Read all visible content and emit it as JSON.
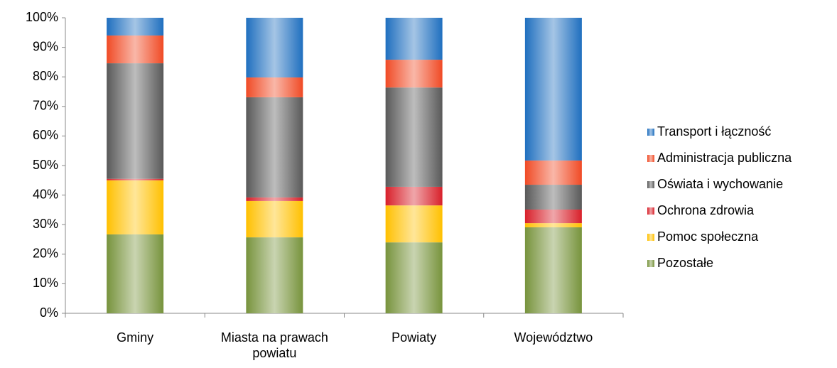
{
  "chart_data": {
    "type": "stacked_bar_100",
    "categories": [
      "Gminy",
      "Miasta na prawach powiatu",
      "Powiaty",
      "Województwo"
    ],
    "series": [
      {
        "name": "Pozostałe",
        "color": "#77933c",
        "values": [
          26.7,
          25.7,
          24.0,
          29.1
        ]
      },
      {
        "name": "Pomoc społeczna",
        "color": "#ffc000",
        "values": [
          18.3,
          12.3,
          12.5,
          1.4
        ]
      },
      {
        "name": "Ochrona zdrowia",
        "color": "#d8202a",
        "values": [
          0.5,
          1.2,
          6.3,
          4.6
        ]
      },
      {
        "name": "Oświata i wychowanie",
        "color": "#595959",
        "values": [
          39.1,
          33.9,
          33.6,
          8.4
        ]
      },
      {
        "name": "Administracja publiczna",
        "color": "#f04a25",
        "values": [
          9.4,
          6.7,
          9.4,
          8.2
        ]
      },
      {
        "name": "Transport i łączność",
        "color": "#1f6fbf",
        "values": [
          6.0,
          20.2,
          14.2,
          48.3
        ]
      }
    ],
    "ylim": [
      0,
      100
    ],
    "yticks": [
      {
        "value": 0,
        "label": "0%"
      },
      {
        "value": 10,
        "label": "10%"
      },
      {
        "value": 20,
        "label": "20%"
      },
      {
        "value": 30,
        "label": "30%"
      },
      {
        "value": 40,
        "label": "40%"
      },
      {
        "value": 50,
        "label": "50%"
      },
      {
        "value": 60,
        "label": "60%"
      },
      {
        "value": 70,
        "label": "70%"
      },
      {
        "value": 80,
        "label": "80%"
      },
      {
        "value": 90,
        "label": "90%"
      },
      {
        "value": 100,
        "label": "100%"
      }
    ],
    "legend": "right"
  }
}
